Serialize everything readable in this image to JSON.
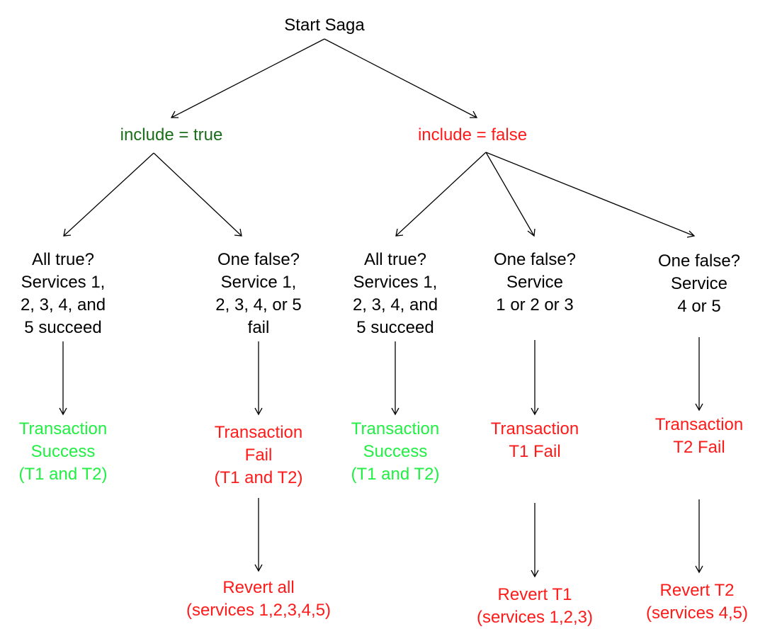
{
  "colors": {
    "black": "#000000",
    "green_dark": "#1a6e1a",
    "green": "#22ee44",
    "red": "#ff1a1a"
  },
  "nodes": {
    "start": {
      "lines": [
        "Start Saga"
      ]
    },
    "include_true": {
      "lines": [
        "include = true"
      ]
    },
    "include_false": {
      "lines": [
        "include = false"
      ]
    },
    "a_all_true": {
      "lines": [
        "All true?",
        "Services 1,",
        "2, 3, 4, and",
        "5 succeed"
      ]
    },
    "a_one_false": {
      "lines": [
        "One false?",
        "Service 1,",
        "2, 3, 4, or 5",
        "fail"
      ]
    },
    "b_all_true": {
      "lines": [
        "All true?",
        "Services 1,",
        "2, 3, 4, and",
        "5 succeed"
      ]
    },
    "b_one_false_123": {
      "lines": [
        "One false?",
        "Service",
        "1 or 2 or 3"
      ]
    },
    "b_one_false_45": {
      "lines": [
        "One false?",
        "Service",
        "4 or 5"
      ]
    },
    "a_success": {
      "lines": [
        "Transaction",
        "Success",
        "(T1 and T2)"
      ]
    },
    "a_fail": {
      "lines": [
        "Transaction",
        "Fail",
        "(T1 and T2)"
      ]
    },
    "b_success": {
      "lines": [
        "Transaction",
        "Success",
        "(T1 and T2)"
      ]
    },
    "b_t1_fail": {
      "lines": [
        "Transaction",
        "T1 Fail"
      ]
    },
    "b_t2_fail": {
      "lines": [
        "Transaction",
        "T2 Fail"
      ]
    },
    "revert_all": {
      "lines": [
        "Revert all",
        "(services 1,2,3,4,5)"
      ]
    },
    "revert_t1": {
      "lines": [
        "Revert T1",
        "(services 1,2,3)"
      ]
    },
    "revert_t2": {
      "lines": [
        "Revert T2",
        "(services 4,5)"
      ]
    }
  }
}
